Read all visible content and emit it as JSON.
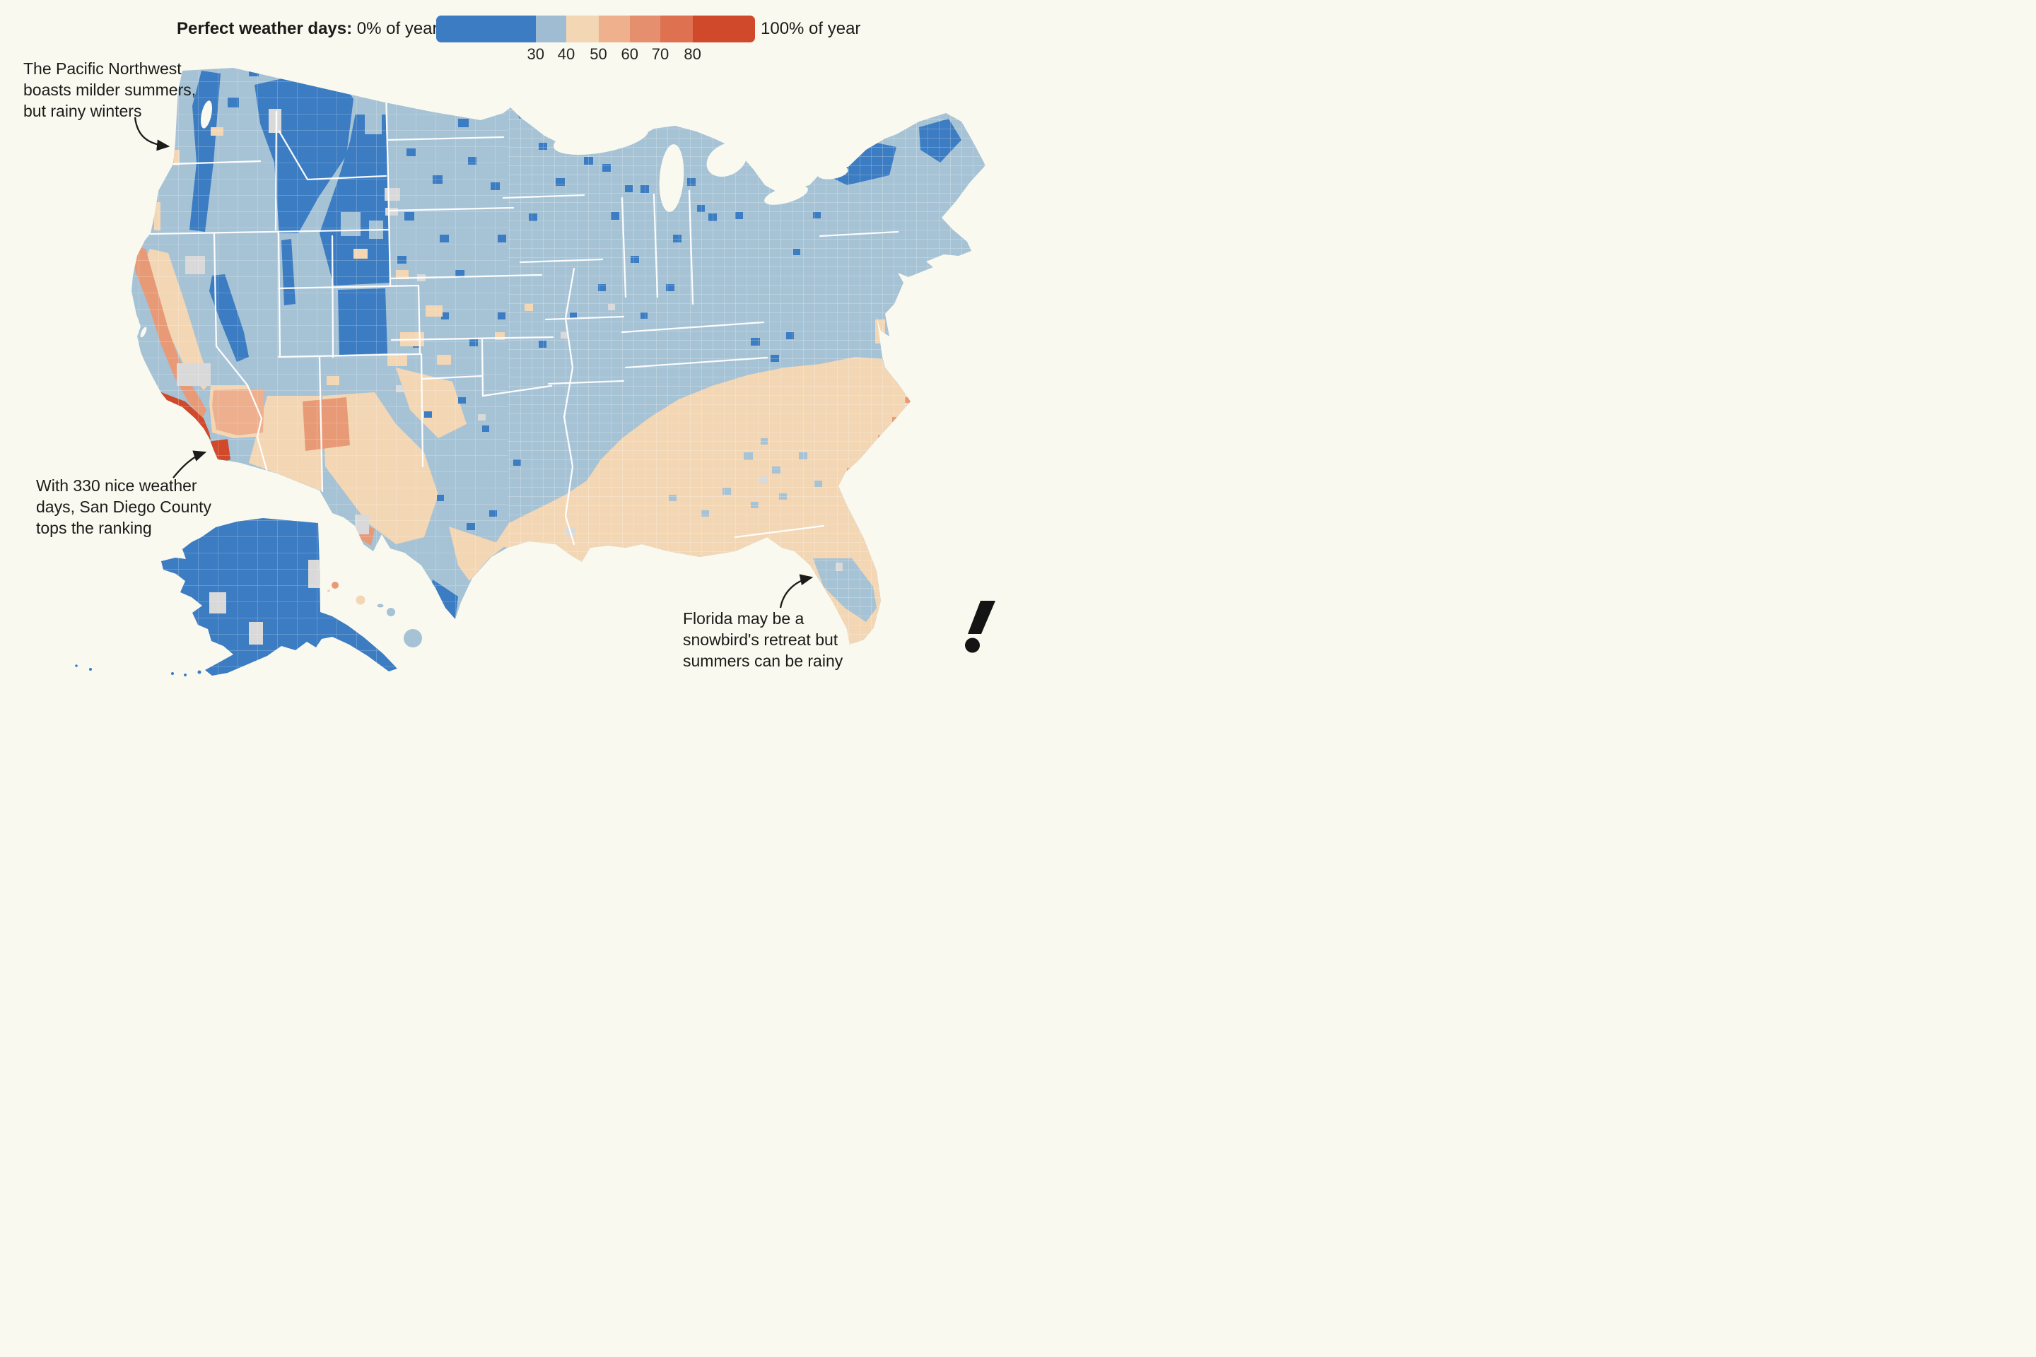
{
  "page": {
    "background": "#FAF9EF",
    "text_color": "#1B1B19"
  },
  "legend": {
    "title_bold": "Perfect weather days:",
    "min_label": "0% of year",
    "max_label": "100% of year",
    "segments": [
      {
        "color": "#3B7CC2",
        "width_pct": 31.2
      },
      {
        "color": "#9FBCD3",
        "width_pct": 9.6
      },
      {
        "color": "#F3D6B3",
        "width_pct": 10.1
      },
      {
        "color": "#EFB18D",
        "width_pct": 9.8
      },
      {
        "color": "#E58F6E",
        "width_pct": 9.6
      },
      {
        "color": "#DE7150",
        "width_pct": 10.1
      },
      {
        "color": "#D0492B",
        "width_pct": 19.6
      }
    ],
    "ticks": [
      {
        "label": "30",
        "pos_pct": 31.2
      },
      {
        "label": "40",
        "pos_pct": 40.8
      },
      {
        "label": "50",
        "pos_pct": 50.9
      },
      {
        "label": "60",
        "pos_pct": 60.7
      },
      {
        "label": "70",
        "pos_pct": 70.3
      },
      {
        "label": "80",
        "pos_pct": 80.4
      }
    ]
  },
  "annotations": {
    "pacific_northwest": {
      "lines": [
        "The Pacific Northwest",
        "boasts milder summers,",
        "but rainy winters"
      ]
    },
    "san_diego": {
      "lines": [
        "With 330 nice weather",
        "days, San Diego County",
        "tops the ranking"
      ]
    },
    "florida": {
      "lines": [
        "Florida may be a",
        "snowbird's retreat but",
        "summers can be rainy"
      ]
    }
  },
  "palette": {
    "background": "#FAF9EF",
    "county_blue": "#3B7CC2",
    "county_light_blue": "#A6C2D5",
    "county_beige": "#F3D6B3",
    "county_salmon": "#E89A76",
    "county_pink_salmon": "#EDAF8D",
    "county_orange": "#DE7150",
    "county_red": "#D0492B",
    "county_gray": "#D9D9D9",
    "border_white": "#FFFFFF",
    "arrow_ink": "#1B1B19",
    "logo_ink": "#141414"
  },
  "logo": {
    "glyph": "exclamation-mark"
  },
  "chart_data": {
    "type": "choropleth_map",
    "title": "Perfect weather days",
    "unit": "% of year",
    "geography": "United States counties (contiguous US, Alaska, Hawaii)",
    "scale": {
      "min": 0,
      "max": 100,
      "min_label": "0% of year",
      "max_label": "100% of year",
      "breaks": [
        30,
        40,
        50,
        60,
        70,
        80
      ],
      "colors": [
        "#3B7CC2",
        "#9FBCD3",
        "#F3D6B3",
        "#EFB18D",
        "#E58F6E",
        "#DE7150",
        "#D0492B"
      ]
    },
    "highlights": [
      {
        "region": "San Diego County, CA",
        "value": "330 nice weather days per year; tops the ranking (deepest red, ~90% of year)"
      },
      {
        "region": "Pacific Northwest",
        "value": "Under 30% of year; milder summers but rainy winters"
      },
      {
        "region": "Florida",
        "value": "Mostly 30-50% of year; snowbird's retreat but summers can be rainy"
      },
      {
        "region": "Northern Rockies, northern Plains, Alaska",
        "value": "Under 30% of year (deep blue)"
      },
      {
        "region": "Midwest, Northeast, Appalachia",
        "value": "30-40% of year (light blue)"
      },
      {
        "region": "Southeast coastal plain, Gulf Coast, Southwest deserts",
        "value": "40-50% of year (beige)"
      },
      {
        "region": "Central and Southern California coast",
        "value": "60-90% of year (salmon to red)"
      },
      {
        "region": "Hawaii",
        "value": "Mixed 30-60% of year"
      }
    ]
  }
}
